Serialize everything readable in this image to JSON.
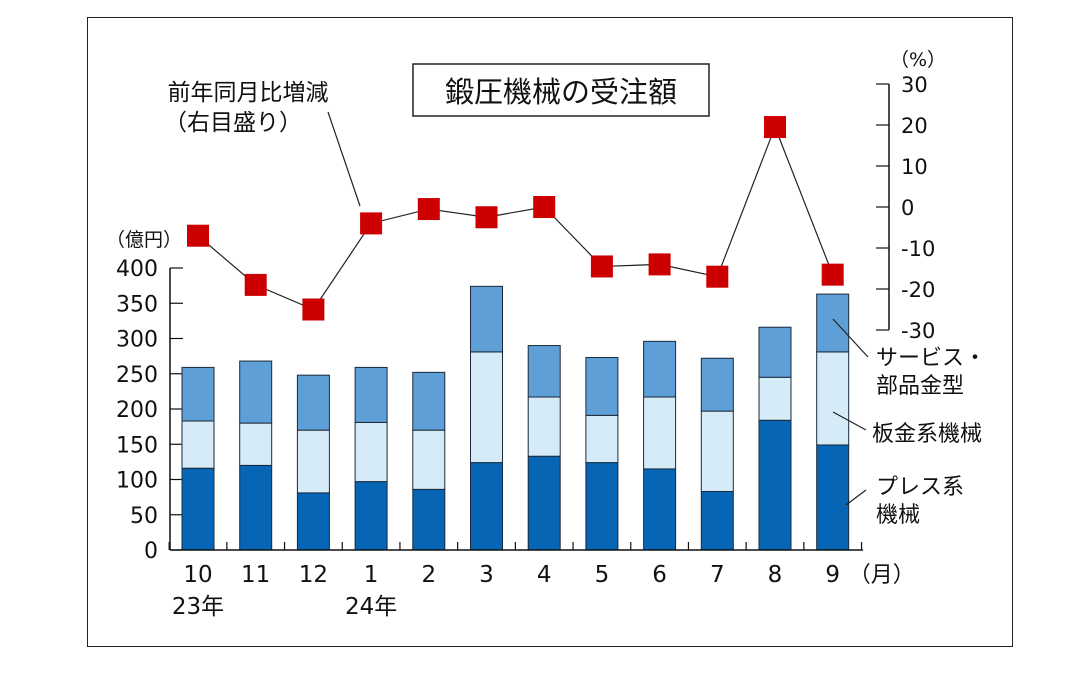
{
  "chart_data": {
    "type": "bar",
    "stacked": true,
    "title": "鍛圧機械の受注額",
    "categories": [
      "10",
      "11",
      "12",
      "1",
      "2",
      "3",
      "4",
      "5",
      "6",
      "7",
      "8",
      "9"
    ],
    "year_labels": [
      {
        "category": "10",
        "label": "23年"
      },
      {
        "category": "1",
        "label": "24年"
      }
    ],
    "x_unit": "（月）",
    "left_axis": {
      "unit": "（億円）",
      "ylim": [
        0,
        400
      ],
      "ticks": [
        "0",
        "50",
        "100",
        "150",
        "200",
        "250",
        "300",
        "350",
        "400"
      ]
    },
    "right_axis": {
      "unit": "（%）",
      "ylim": [
        -30,
        30
      ],
      "ticks": [
        "-30",
        "-20",
        "-10",
        "0",
        "10",
        "20",
        "30"
      ]
    },
    "series": [
      {
        "name": "プレス系機械",
        "label_lines": [
          "プレス系",
          "機械"
        ],
        "color": "#0765b5",
        "values": [
          116,
          120,
          81,
          97,
          86,
          124,
          133,
          124,
          115,
          83,
          184,
          149
        ]
      },
      {
        "name": "板金系機械",
        "label_lines": [
          "板金系機械"
        ],
        "color": "#d6ebf8",
        "values": [
          67,
          60,
          89,
          84,
          84,
          157,
          84,
          67,
          102,
          114,
          61,
          132
        ]
      },
      {
        "name": "サービス・部品金型",
        "label_lines": [
          "サービス・",
          "部品金型"
        ],
        "color": "#5f9fd7",
        "values": [
          76,
          88,
          78,
          78,
          82,
          93,
          73,
          82,
          79,
          75,
          71,
          82
        ]
      }
    ],
    "line_series": {
      "name": "前年同月比増減（右目盛り）",
      "label_lines": [
        "前年同月比増減",
        "（右目盛り）"
      ],
      "color": "#cc0000",
      "axis": "right",
      "values": [
        -7,
        -19,
        -25,
        -4,
        -0.5,
        -2.5,
        0,
        -14.5,
        -14,
        -17,
        19.5,
        -16.5
      ]
    },
    "grid": false,
    "legend": "inline labels at right"
  }
}
